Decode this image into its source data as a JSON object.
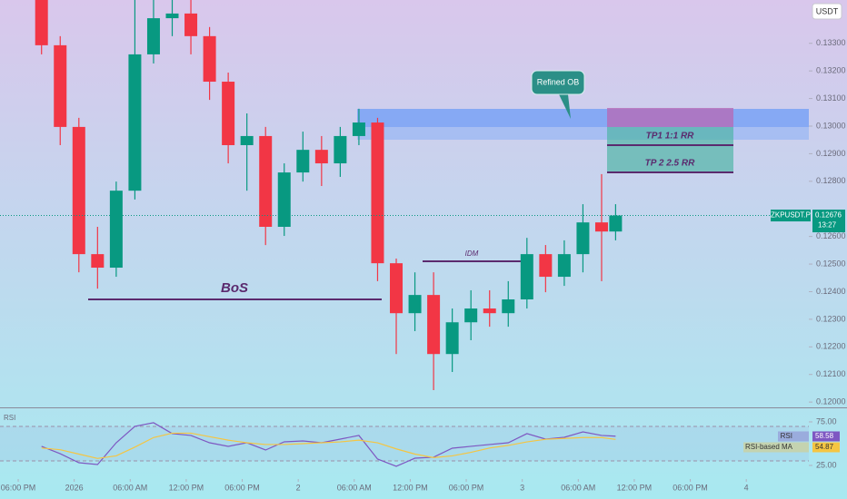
{
  "chart_data": [
    {
      "type": "candlestick",
      "currency": "USDT",
      "symbol_label": "ZKPUSDT.P",
      "last_price": 0.12676,
      "countdown": "13:27",
      "up_color": "#089981",
      "down_color": "#f23645",
      "annotations": [
        "Refined OB",
        "TP1 1:1 RR",
        "TP 2 2.5 RR",
        "BoS",
        "IDM"
      ],
      "x": [
        2.5,
        4.5,
        6.5,
        8.5,
        10.5,
        12.5,
        14.5,
        16.5,
        18.5,
        20.5,
        22.5,
        24.5,
        26.5,
        28.5,
        30.5,
        32.5,
        34.5,
        36.5,
        38.5,
        40.5,
        42.5,
        44.5,
        46.5,
        48.5,
        50.5,
        52.5,
        54.5,
        56.5,
        58.5,
        60.5,
        62.5,
        64
      ],
      "open": [
        0.13457,
        0.13293,
        0.12997,
        0.12536,
        0.12487,
        0.12766,
        0.1326,
        0.13391,
        0.13408,
        0.13326,
        0.13161,
        0.12931,
        0.12964,
        0.12635,
        0.12832,
        0.12914,
        0.12865,
        0.12964,
        0.13013,
        0.12503,
        0.12322,
        0.12388,
        0.12174,
        0.12289,
        0.12339,
        0.12322,
        0.12372,
        0.12536,
        0.12454,
        0.12536,
        0.12651,
        0.12618
      ],
      "high": [
        0.135,
        0.13326,
        0.1303,
        0.12635,
        0.12799,
        0.135,
        0.135,
        0.135,
        0.135,
        0.13359,
        0.13194,
        0.13046,
        0.12997,
        0.12865,
        0.1298,
        0.12964,
        0.12997,
        0.13063,
        0.1303,
        0.1252,
        0.1247,
        0.1247,
        0.12339,
        0.12405,
        0.12405,
        0.12438,
        0.12595,
        0.12569,
        0.12586,
        0.12717,
        0.12826,
        0.12717
      ],
      "low": [
        0.1326,
        0.12931,
        0.1247,
        0.12411,
        0.12454,
        0.12734,
        0.13227,
        0.13326,
        0.1326,
        0.13095,
        0.12865,
        0.12766,
        0.12569,
        0.12602,
        0.12799,
        0.12783,
        0.12816,
        0.12931,
        0.12438,
        0.12174,
        0.12257,
        0.12043,
        0.12109,
        0.12224,
        0.12273,
        0.12273,
        0.12339,
        0.12398,
        0.12421,
        0.1247,
        0.12438,
        0.12586
      ],
      "close": [
        0.13293,
        0.12997,
        0.12536,
        0.12487,
        0.12766,
        0.1326,
        0.13391,
        0.13408,
        0.13326,
        0.13161,
        0.12931,
        0.12964,
        0.12635,
        0.12832,
        0.12914,
        0.12865,
        0.12964,
        0.13013,
        0.12503,
        0.12322,
        0.12388,
        0.12174,
        0.12289,
        0.12339,
        0.12322,
        0.12372,
        0.12536,
        0.12454,
        0.12536,
        0.12651,
        0.12618,
        0.12676
      ],
      "xlim": [
        -1.95,
        84.7
      ],
      "xticks": [
        {
          "value": 0,
          "label": "06:00 PM"
        },
        {
          "value": 6,
          "label": "2026"
        },
        {
          "value": 12,
          "label": "06:00 AM"
        },
        {
          "value": 18,
          "label": "12:00 PM"
        },
        {
          "value": 24,
          "label": "06:00 PM"
        },
        {
          "value": 30,
          "label": "2"
        },
        {
          "value": 36,
          "label": "06:00 AM"
        },
        {
          "value": 42,
          "label": "12:00 PM"
        },
        {
          "value": 48,
          "label": "06:00 PM"
        },
        {
          "value": 54,
          "label": "3"
        },
        {
          "value": 60,
          "label": "06:00 AM"
        },
        {
          "value": 66,
          "label": "12:00 PM"
        },
        {
          "value": 72,
          "label": "06:00 PM"
        },
        {
          "value": 78,
          "label": "4"
        }
      ],
      "ylim": [
        0.11984,
        0.13457
      ],
      "yticks": [
        {
          "value": 0.12,
          "label": "0.12000"
        },
        {
          "value": 0.121,
          "label": "0.12100"
        },
        {
          "value": 0.122,
          "label": "0.12200"
        },
        {
          "value": 0.123,
          "label": "0.12300"
        },
        {
          "value": 0.124,
          "label": "0.12400"
        },
        {
          "value": 0.125,
          "label": "0.12500"
        },
        {
          "value": 0.126,
          "label": "0.12600"
        },
        {
          "value": 0.128,
          "label": "0.12800"
        },
        {
          "value": 0.129,
          "label": "0.12900"
        },
        {
          "value": 0.13,
          "label": "0.13000"
        },
        {
          "value": 0.131,
          "label": "0.13100"
        },
        {
          "value": 0.132,
          "label": "0.13200"
        },
        {
          "value": 0.133,
          "label": "0.13300"
        }
      ]
    },
    {
      "type": "line",
      "title": "RSI",
      "x": [
        2.5,
        4.5,
        6.5,
        8.5,
        10.5,
        12.5,
        14.5,
        16.5,
        18.5,
        20.5,
        22.5,
        24.5,
        26.5,
        28.5,
        30.5,
        32.5,
        34.5,
        36.5,
        38.5,
        40.5,
        42.5,
        44.5,
        46.5,
        48.5,
        50.5,
        52.5,
        54.5,
        56.5,
        58.5,
        60.5,
        62.5,
        64
      ],
      "series": [
        {
          "name": "RSI",
          "color": "#7e57c2",
          "values": [
            46.9,
            38.5,
            28.1,
            26.0,
            51.0,
            69.8,
            74.0,
            61.5,
            59.4,
            51.0,
            46.9,
            51.0,
            42.7,
            52.1,
            53.1,
            51.0,
            55.2,
            59.4,
            32.3,
            24.0,
            33.3,
            34.4,
            44.8,
            46.9,
            49.0,
            51.0,
            61.5,
            55.2,
            57.3,
            63.5,
            59.4,
            58.58
          ]
        },
        {
          "name": "RSI-based MA",
          "color": "#f5c542",
          "values": [
            45,
            43,
            38,
            33,
            36,
            46,
            57,
            62,
            62,
            58,
            54,
            51,
            49,
            49,
            50,
            51,
            52,
            54,
            51,
            44,
            38,
            34,
            36,
            40,
            45,
            48,
            52,
            55,
            56,
            57,
            57,
            54.87
          ]
        }
      ],
      "xlim": [
        -1.95,
        84.7
      ],
      "ylim": [
        17.7,
        90.6
      ],
      "yticks": [
        {
          "value": 75,
          "label": "75.00"
        },
        {
          "value": 25,
          "label": "25.00"
        }
      ]
    }
  ]
}
